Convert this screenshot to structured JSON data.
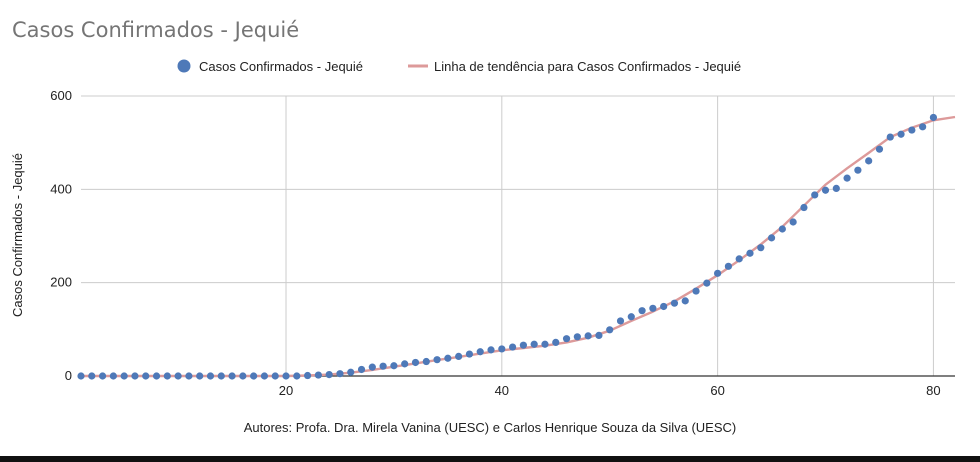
{
  "chart_data": {
    "type": "scatter",
    "title": "Casos Confirmados - Jequié",
    "xlabel": "",
    "ylabel": "Casos Confirmados - Jequié",
    "footer": "Autores: Profa. Dra. Mirela Vanina (UESC) e Carlos Henrique Souza da Silva (UESC)",
    "xlim": [
      1,
      82
    ],
    "ylim": [
      0,
      600
    ],
    "xticks": [
      20,
      40,
      60,
      80
    ],
    "yticks": [
      0,
      200,
      400,
      600
    ],
    "grid": true,
    "legend_position": "top",
    "series": [
      {
        "name": "Casos Confirmados - Jequié",
        "kind": "points",
        "color": "#4e79b8",
        "x": [
          1,
          2,
          3,
          4,
          5,
          6,
          7,
          8,
          9,
          10,
          11,
          12,
          13,
          14,
          15,
          16,
          17,
          18,
          19,
          20,
          21,
          22,
          23,
          24,
          25,
          26,
          27,
          28,
          29,
          30,
          31,
          32,
          33,
          34,
          35,
          36,
          37,
          38,
          39,
          40,
          41,
          42,
          43,
          44,
          45,
          46,
          47,
          48,
          49,
          50,
          51,
          52,
          53,
          54,
          55,
          56,
          57,
          58,
          59,
          60,
          61,
          62,
          63,
          64,
          65,
          66,
          67,
          68,
          69,
          70,
          71,
          72,
          73,
          74,
          75,
          76,
          77,
          78,
          79,
          80
        ],
        "y": [
          0,
          0,
          0,
          0,
          0,
          0,
          0,
          0,
          0,
          0,
          0,
          0,
          0,
          0,
          0,
          0,
          0,
          0,
          0,
          0,
          0,
          1,
          2,
          3,
          5,
          8,
          14,
          19,
          21,
          22,
          26,
          29,
          31,
          35,
          38,
          42,
          47,
          52,
          56,
          58,
          62,
          66,
          68,
          68,
          72,
          80,
          84,
          86,
          87,
          99,
          118,
          127,
          140,
          145,
          149,
          156,
          161,
          182,
          199,
          220,
          235,
          251,
          263,
          275,
          296,
          315,
          330,
          361,
          388,
          398,
          402,
          424,
          441,
          461,
          486,
          512,
          518,
          527,
          534,
          554
        ]
      },
      {
        "name": "Linha de tendência para Casos Confirmados - Jequié",
        "kind": "line",
        "color": "#dd9a9a",
        "x": [
          1,
          5,
          10,
          15,
          20,
          22,
          24,
          26,
          28,
          30,
          32,
          34,
          36,
          38,
          40,
          42,
          44,
          46,
          48,
          50,
          52,
          54,
          56,
          58,
          60,
          62,
          64,
          66,
          68,
          70,
          72,
          74,
          76,
          78,
          80,
          82
        ],
        "y": [
          0,
          0,
          0,
          0,
          0,
          1,
          3,
          7,
          13,
          20,
          27,
          34,
          41,
          48,
          55,
          60,
          65,
          72,
          82,
          97,
          118,
          138,
          160,
          187,
          216,
          248,
          282,
          320,
          365,
          410,
          445,
          478,
          512,
          532,
          548,
          555
        ]
      }
    ]
  }
}
